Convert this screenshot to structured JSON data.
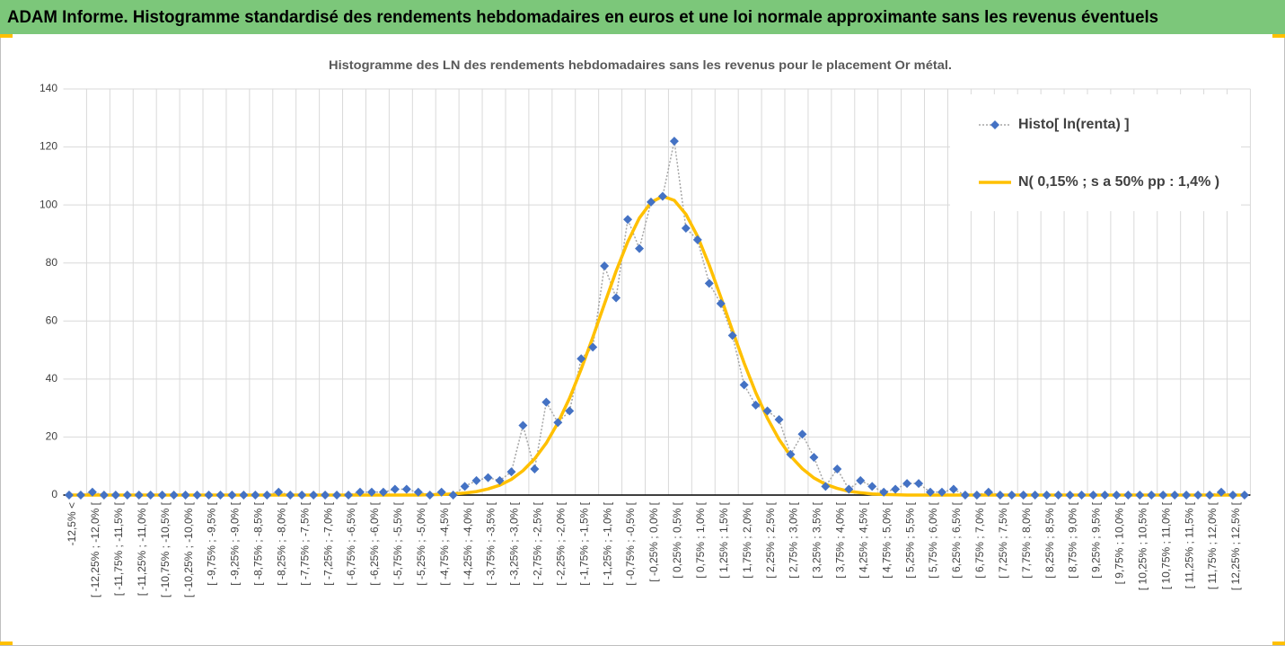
{
  "header": {
    "title": "ADAM Informe. Histogramme standardisé des rendements hebdomadaires en euros et une loi normale approximante sans les revenus éventuels"
  },
  "chart_data": {
    "type": "line",
    "title": "Histogramme des LN des rendements hebdomadaires sans les revenus pour le placement Or métal.",
    "categories": [
      "-12,5% <",
      null,
      "[ -12,25% ; -12,0% [",
      null,
      "[ -11,75% ; -11,5% [",
      null,
      "[ -11,25% ; -11,0% [",
      null,
      "[ -10,75% ; -10,5% [",
      null,
      "[ -10,25% ; -10,0% [",
      null,
      "[ -9,75% ; -9,5% [",
      null,
      "[ -9,25% ; -9,0% [",
      null,
      "[ -8,75% ; -8,5% [",
      null,
      "[ -8,25% ; -8,0% [",
      null,
      "[ -7,75% ; -7,5% [",
      null,
      "[ -7,25% ; -7,0% [",
      null,
      "[ -6,75% ; -6,5% [",
      null,
      "[ -6,25% ; -6,0% [",
      null,
      "[ -5,75% ; -5,5% [",
      null,
      "[ -5,25% ; -5,0% [",
      null,
      "[ -4,75% ; -4,5% [",
      null,
      "[ -4,25% ; -4,0% [",
      null,
      "[ -3,75% ; -3,5% [",
      null,
      "[ -3,25% ; -3,0% [",
      null,
      "[ -2,75% ; -2,5% [",
      null,
      "[ -2,25% ; -2,0% [",
      null,
      "[ -1,75% ; -1,5% [",
      null,
      "[ -1,25% ; -1,0% [",
      null,
      "[ -0,75% ; -0,5% [",
      null,
      "[ -0,25% ; 0,0% [",
      null,
      "[ 0,25% ; 0,5% [",
      null,
      "[ 0,75% ; 1,0% [",
      null,
      "[ 1,25% ; 1,5% [",
      null,
      "[ 1,75% ; 2,0% [",
      null,
      "[ 2,25% ; 2,5% [",
      null,
      "[ 2,75% ; 3,0% [",
      null,
      "[ 3,25% ; 3,5% [",
      null,
      "[ 3,75% ; 4,0% [",
      null,
      "[ 4,25% ; 4,5% [",
      null,
      "[ 4,75% ; 5,0% [",
      null,
      "[ 5,25% ; 5,5% [",
      null,
      "[ 5,75% ; 6,0% [",
      null,
      "[ 6,25% ; 6,5% [",
      null,
      "[ 6,75% ; 7,0% [",
      null,
      "[ 7,25% ; 7,5% [",
      null,
      "[ 7,75% ; 8,0% [",
      null,
      "[ 8,25% ; 8,5% [",
      null,
      "[ 8,75% ; 9,0% [",
      null,
      "[ 9,25% ; 9,5% [",
      null,
      "[ 9,75% ; 10,0% [",
      null,
      "[ 10,25% ; 10,5% [",
      null,
      "[ 10,75% ; 11,0% [",
      null,
      "[ 11,25% ; 11,5% [",
      null,
      "[ 11,75% ; 12,0% [",
      null,
      "[ 12,25% ; 12,5% [",
      null
    ],
    "series": [
      {
        "name": "Histo[ ln(renta) ]",
        "color": "#4472c4",
        "values": [
          0,
          0,
          1,
          0,
          0,
          0,
          0,
          0,
          0,
          0,
          0,
          0,
          0,
          0,
          0,
          0,
          0,
          0,
          1,
          0,
          0,
          0,
          0,
          0,
          0,
          1,
          1,
          1,
          2,
          2,
          1,
          0,
          1,
          0,
          3,
          5,
          6,
          5,
          8,
          24,
          9,
          32,
          25,
          29,
          47,
          51,
          79,
          68,
          95,
          85,
          101,
          103,
          122,
          92,
          88,
          73,
          66,
          55,
          38,
          31,
          29,
          26,
          14,
          21,
          13,
          3,
          9,
          2,
          5,
          3,
          1,
          2,
          4,
          4,
          1,
          1,
          2,
          0,
          0,
          1,
          0,
          0,
          0,
          0,
          0,
          0,
          0,
          0,
          0,
          0,
          0,
          0,
          0,
          0,
          0,
          0,
          0,
          0,
          0,
          1,
          0,
          0
        ]
      },
      {
        "name": "N( 0,15% ; s a 50% pp : 1,4% )",
        "color": "#ffc000",
        "values": [
          0,
          0,
          0,
          0,
          0,
          0,
          0,
          0,
          0,
          0,
          0,
          0,
          0,
          0,
          0,
          0,
          0,
          0,
          0,
          0,
          0,
          0,
          0,
          0,
          0,
          0,
          0,
          0,
          0,
          0,
          0,
          0.1,
          0.2,
          0.4,
          0.7,
          1.2,
          2.1,
          3.4,
          5.4,
          8.4,
          12.5,
          17.9,
          24.9,
          33.4,
          43.4,
          54.4,
          65.9,
          77.2,
          87.3,
          95.5,
          100.9,
          103,
          101.6,
          96.8,
          89.2,
          79.3,
          68.2,
          56.7,
          45.5,
          35.3,
          26.5,
          19.2,
          13.4,
          9.1,
          5.9,
          3.7,
          2.3,
          1.3,
          0.8,
          0.4,
          0.2,
          0.1,
          0,
          0,
          0,
          0,
          0,
          0,
          0,
          0,
          0,
          0,
          0,
          0,
          0,
          0,
          0,
          0,
          0,
          0,
          0,
          0,
          0,
          0,
          0,
          0,
          0,
          0,
          0,
          0,
          0,
          0
        ]
      }
    ],
    "ylim": [
      0,
      140
    ],
    "yticks": [
      0,
      20,
      40,
      60,
      80,
      100,
      120,
      140
    ],
    "grid": true,
    "legend": "top-right"
  }
}
